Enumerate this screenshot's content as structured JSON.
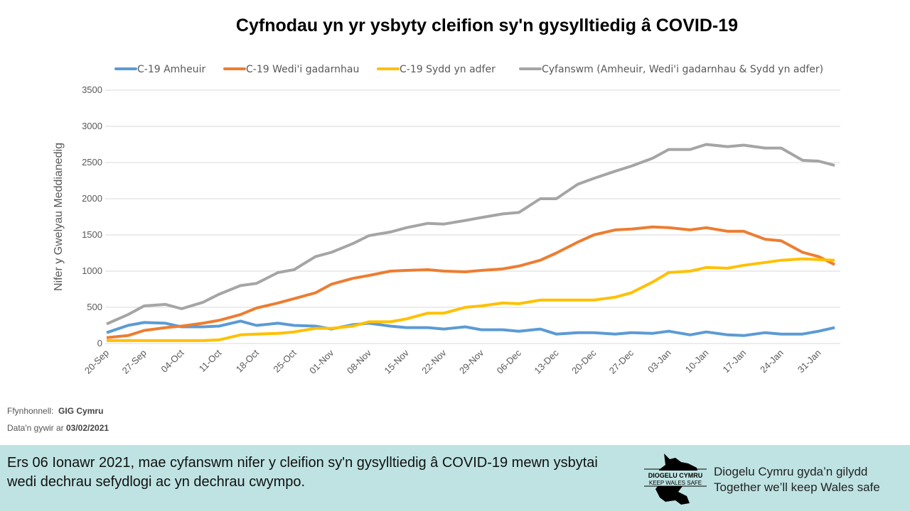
{
  "chart_data": {
    "type": "line",
    "title": "Cyfnodau yn yr ysbyty cleifion sy'n gysylltiedig â COVID-19",
    "ylabel": "Nifer y Gwelyau Meddianedig",
    "xlabel": "",
    "ylim": [
      0,
      3500
    ],
    "yticks": [
      0,
      500,
      1000,
      1500,
      2000,
      2500,
      3000,
      3500
    ],
    "grid": true,
    "legend_position": "top",
    "xtick_labels": [
      "20-Sep",
      "27-Sep",
      "04-Oct",
      "11-Oct",
      "18-Oct",
      "25-Oct",
      "01-Nov",
      "08-Nov",
      "15-Nov",
      "22-Nov",
      "29-Nov",
      "06-Dec",
      "13-Dec",
      "20-Dec",
      "27-Dec",
      "03-Jan",
      "10-Jan",
      "17-Jan",
      "24-Jan",
      "31-Jan"
    ],
    "x": [
      "2020-09-20",
      "2020-09-24",
      "2020-09-27",
      "2020-10-01",
      "2020-10-04",
      "2020-10-08",
      "2020-10-11",
      "2020-10-15",
      "2020-10-18",
      "2020-10-22",
      "2020-10-25",
      "2020-10-29",
      "2020-11-01",
      "2020-11-05",
      "2020-11-08",
      "2020-11-12",
      "2020-11-15",
      "2020-11-19",
      "2020-11-22",
      "2020-11-26",
      "2020-11-29",
      "2020-12-03",
      "2020-12-06",
      "2020-12-10",
      "2020-12-13",
      "2020-12-17",
      "2020-12-20",
      "2020-12-24",
      "2020-12-27",
      "2020-12-31",
      "2021-01-03",
      "2021-01-07",
      "2021-01-10",
      "2021-01-14",
      "2021-01-17",
      "2021-01-21",
      "2021-01-24",
      "2021-01-28",
      "2021-01-31",
      "2021-02-03"
    ],
    "series": [
      {
        "name": "C-19 Amheuir",
        "color": "#5b9bd5",
        "values": [
          150,
          250,
          290,
          280,
          230,
          230,
          240,
          310,
          250,
          280,
          250,
          240,
          200,
          260,
          280,
          240,
          220,
          220,
          200,
          230,
          190,
          190,
          170,
          200,
          130,
          150,
          150,
          130,
          150,
          140,
          170,
          120,
          160,
          120,
          110,
          150,
          130,
          130,
          170,
          220
        ]
      },
      {
        "name": "C-19 Wedi'i gadarnhau",
        "color": "#ed7d31",
        "values": [
          80,
          110,
          180,
          220,
          240,
          280,
          320,
          400,
          490,
          560,
          620,
          700,
          820,
          900,
          940,
          1000,
          1010,
          1020,
          1000,
          990,
          1010,
          1030,
          1070,
          1150,
          1250,
          1400,
          1500,
          1570,
          1580,
          1610,
          1600,
          1570,
          1600,
          1550,
          1550,
          1440,
          1420,
          1260,
          1200,
          1090
        ]
      },
      {
        "name": "C-19 Sydd yn adfer",
        "color": "#ffc000",
        "values": [
          40,
          40,
          40,
          40,
          40,
          40,
          50,
          120,
          130,
          140,
          160,
          210,
          210,
          240,
          300,
          300,
          340,
          420,
          420,
          500,
          520,
          560,
          550,
          600,
          600,
          600,
          600,
          640,
          700,
          850,
          980,
          1000,
          1050,
          1040,
          1080,
          1120,
          1150,
          1170,
          1160,
          1150
        ]
      },
      {
        "name": "Cyfanswm (Amheuir, Wedi'i gadarnhau & Sydd yn adfer)",
        "color": "#a5a5a5",
        "values": [
          270,
          400,
          520,
          540,
          480,
          570,
          680,
          800,
          830,
          980,
          1020,
          1200,
          1260,
          1380,
          1490,
          1540,
          1600,
          1660,
          1650,
          1700,
          1740,
          1790,
          1810,
          2000,
          2000,
          2200,
          2280,
          2380,
          2450,
          2560,
          2680,
          2680,
          2750,
          2720,
          2740,
          2700,
          2700,
          2530,
          2520,
          2460
        ]
      }
    ]
  },
  "source": {
    "label": "Ffynhonnell:",
    "value": "GIG Cymru"
  },
  "data_date": {
    "label": "Data'n gywir ar",
    "value": "03/02/2021"
  },
  "footer": {
    "text": "Ers 06 Ionawr 2021, mae cyfanswm nifer y cleifion sy'n gysylltiedig â COVID-19 mewn ysbytai wedi dechrau sefydlogi ac yn dechrau cwympo.",
    "logo_line1": "DIOGELU CYMRU",
    "logo_line2": "KEEP WALES SAFE",
    "slogan_line1": "Diogelu Cymru gyda’n gilydd",
    "slogan_line2": "Together we’ll keep Wales safe"
  }
}
